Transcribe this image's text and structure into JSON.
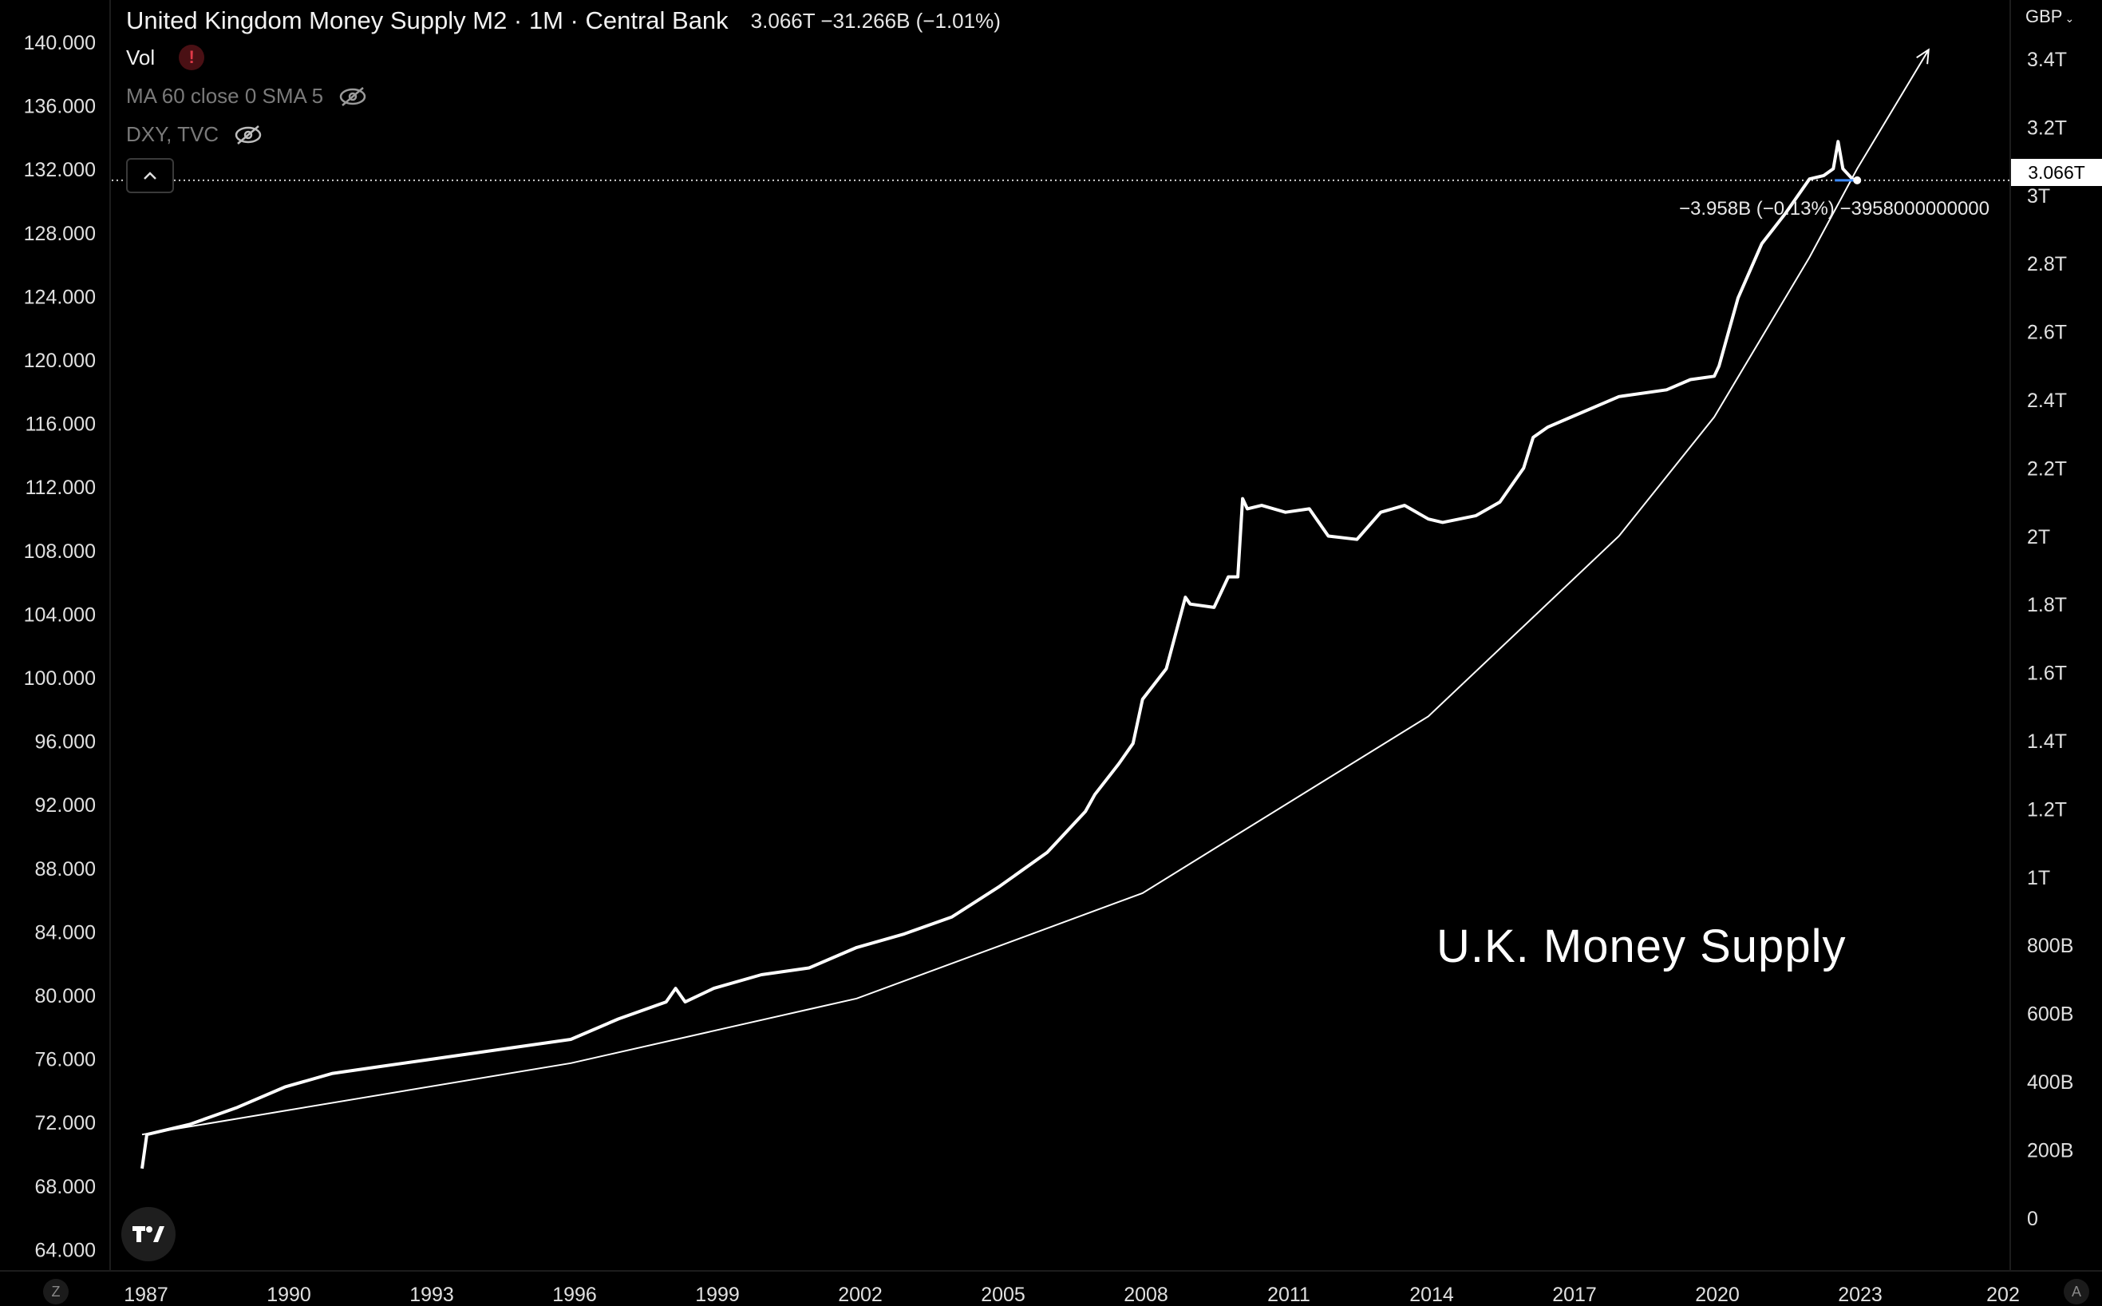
{
  "legend": {
    "title": "United Kingdom Money Supply M2 · 1M · Central Bank",
    "ohlc": "3.066T  −31.266B (−1.01%)",
    "vol_label": "Vol",
    "ma_label": "MA 60 close 0 SMA 5",
    "dxy_label": "DXY, TVC"
  },
  "currency_label": "GBP",
  "last_price_tag": "3.066T",
  "measure_text": "−3.958B (−0.13%) −3958000000000",
  "annotation": "U.K. Money Supply",
  "corner_left": "Z",
  "corner_right": "A",
  "colors": {
    "background": "#000000",
    "line": "#ffffff",
    "text": "#e6e6e6",
    "grid": "#1c1c1c"
  },
  "chart_data": {
    "type": "line",
    "title": "United Kingdom Money Supply M2 · 1M · Central Bank",
    "left_axis": {
      "ticks": [
        "140.000",
        "136.000",
        "132.000",
        "128.000",
        "124.000",
        "120.000",
        "116.000",
        "112.000",
        "108.000",
        "104.000",
        "100.000",
        "96.000",
        "92.000",
        "88.000",
        "84.000",
        "80.000",
        "76.000",
        "72.000",
        "68.000",
        "64.000"
      ]
    },
    "right_axis": {
      "unit": "GBP",
      "ticks": [
        "3.4T",
        "3.2T",
        "3T",
        "2.8T",
        "2.6T",
        "2.4T",
        "2.2T",
        "2T",
        "1.8T",
        "1.6T",
        "1.4T",
        "1.2T",
        "1T",
        "800B",
        "600B",
        "400B",
        "200B",
        "0"
      ]
    },
    "x_ticks": [
      "1987",
      "1990",
      "1993",
      "1996",
      "1999",
      "2002",
      "2005",
      "2008",
      "2011",
      "2014",
      "2017",
      "2020",
      "2023",
      "202"
    ],
    "series": [
      {
        "unit": "GBP trillions",
        "x": [
          1987.0,
          1987.1,
          1988,
          1989,
          1990,
          1991,
          1992,
          1993,
          1994,
          1995,
          1996,
          1997,
          1998,
          1998.2,
          1998.4,
          1999,
          2000,
          2001,
          2002,
          2003,
          2004,
          2005,
          2006,
          2006.8,
          2007,
          2007.5,
          2007.8,
          2008,
          2008.5,
          2008.9,
          2009,
          2009.5,
          2009.8,
          2010.0,
          2010.1,
          2010.2,
          2010.5,
          2011,
          2011.5,
          2011.9,
          2012.5,
          2013,
          2013.5,
          2014,
          2014.3,
          2015,
          2015.5,
          2016,
          2016.2,
          2016.5,
          2017,
          2018,
          2019,
          2019.5,
          2020,
          2020.1,
          2020.5,
          2021,
          2021.5,
          2022,
          2022.3,
          2022.5,
          2022.6,
          2022.7,
          2022.9,
          2023.0
        ],
        "values": [
          0.16,
          0.26,
          0.29,
          0.34,
          0.4,
          0.44,
          0.46,
          0.48,
          0.5,
          0.52,
          0.54,
          0.6,
          0.65,
          0.69,
          0.65,
          0.69,
          0.73,
          0.75,
          0.81,
          0.85,
          0.9,
          0.99,
          1.09,
          1.21,
          1.26,
          1.35,
          1.41,
          1.54,
          1.63,
          1.84,
          1.82,
          1.81,
          1.9,
          1.9,
          2.13,
          2.1,
          2.11,
          2.09,
          2.1,
          2.02,
          2.01,
          2.09,
          2.11,
          2.07,
          2.06,
          2.08,
          2.12,
          2.22,
          2.31,
          2.34,
          2.37,
          2.43,
          2.45,
          2.48,
          2.49,
          2.52,
          2.72,
          2.88,
          2.97,
          3.07,
          3.08,
          3.1,
          3.18,
          3.1,
          3.07,
          3.066
        ]
      }
    ],
    "trend_curve": {
      "x": [
        1987,
        1990,
        1996,
        2002,
        2008,
        2014,
        2018,
        2020,
        2022,
        2023,
        2024.5
      ],
      "values": [
        0.26,
        0.33,
        0.47,
        0.66,
        0.97,
        1.49,
        2.02,
        2.37,
        2.84,
        3.1,
        3.45
      ]
    }
  }
}
